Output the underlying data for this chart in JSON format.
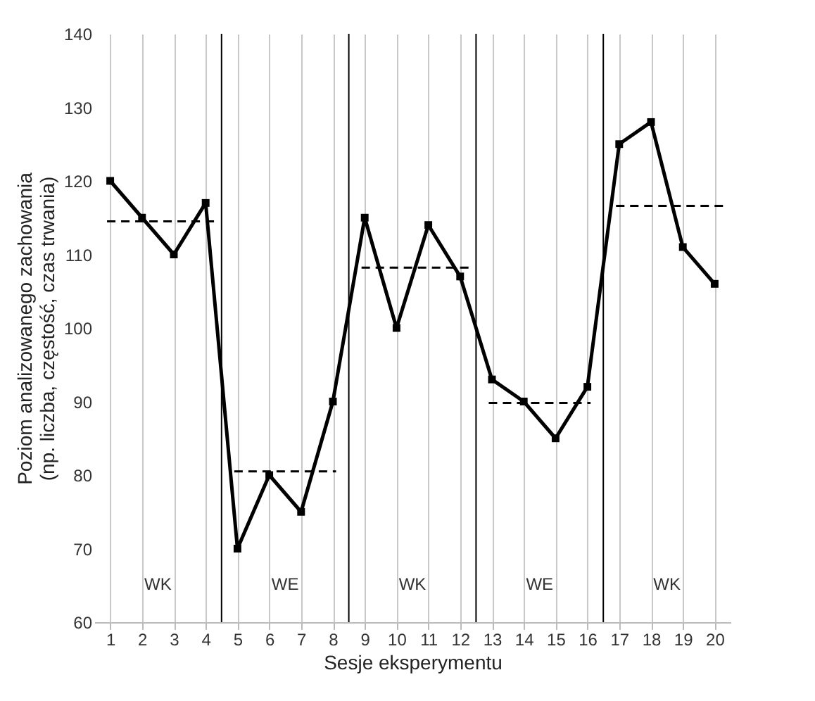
{
  "chart_data": {
    "type": "line",
    "xlabel": "Sesje eksperymentu",
    "ylabel": "Poziom analizowanego zachowania\n(np. liczba, częstość, czas trwania)",
    "x": [
      1,
      2,
      3,
      4,
      5,
      6,
      7,
      8,
      9,
      10,
      11,
      12,
      13,
      14,
      15,
      16,
      17,
      18,
      19,
      20
    ],
    "series": [
      {
        "color": "#000000",
        "marker": "square",
        "line_style": "solid",
        "values": [
          120,
          115,
          110,
          117,
          70,
          80,
          75,
          90,
          115,
          100,
          114,
          107,
          93,
          90,
          85,
          92,
          125,
          128,
          111,
          106
        ]
      },
      {
        "color": "#000000",
        "marker": "none",
        "line_style": "dashed",
        "x": [
          0.9,
          4.3
        ],
        "values": [
          114.5,
          114.5
        ]
      },
      {
        "color": "#000000",
        "marker": "none",
        "line_style": "dashed",
        "x": [
          4.9,
          8.1
        ],
        "values": [
          80.5,
          80.5
        ]
      },
      {
        "color": "#000000",
        "marker": "none",
        "line_style": "dashed",
        "x": [
          8.9,
          12.3
        ],
        "values": [
          108.2,
          108.2
        ]
      },
      {
        "color": "#000000",
        "marker": "none",
        "line_style": "dashed",
        "x": [
          12.9,
          16.1
        ],
        "values": [
          89.8,
          89.8
        ]
      },
      {
        "color": "#000000",
        "marker": "none",
        "line_style": "dashed",
        "x": [
          16.9,
          20.3
        ],
        "values": [
          116.6,
          116.6
        ]
      }
    ],
    "xlim": [
      0.5,
      20.5
    ],
    "xticks": [
      1,
      2,
      3,
      4,
      5,
      6,
      7,
      8,
      9,
      10,
      11,
      12,
      13,
      14,
      15,
      16,
      17,
      18,
      19,
      20
    ],
    "ylim": [
      60,
      140
    ],
    "yticks": [
      60,
      70,
      80,
      90,
      100,
      110,
      120,
      130,
      140
    ],
    "grid": "x",
    "ref_lines": [
      {
        "axis": "x",
        "value": 4.5,
        "color": "#000000"
      },
      {
        "axis": "x",
        "value": 8.5,
        "color": "#000000"
      },
      {
        "axis": "x",
        "value": 12.5,
        "color": "#000000"
      },
      {
        "axis": "x",
        "value": 16.5,
        "color": "#000000"
      }
    ],
    "annotations": [
      "WK",
      "WE",
      "WK",
      "WE",
      "WK"
    ]
  }
}
